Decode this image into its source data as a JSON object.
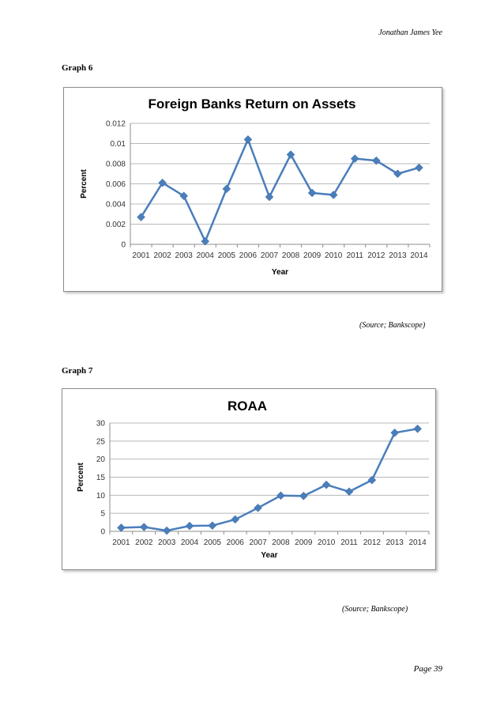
{
  "header": {
    "author": "Jonathan James Yee"
  },
  "graph6": {
    "label": "Graph  6",
    "source": "(Source; Bankscope)",
    "chart_data": {
      "type": "line",
      "title": "Foreign Banks Return on Assets",
      "xlabel": "Year",
      "ylabel": "Percent",
      "categories": [
        "2001",
        "2002",
        "2003",
        "2004",
        "2005",
        "2006",
        "2007",
        "2008",
        "2009",
        "2010",
        "2011",
        "2012",
        "2013",
        "2014"
      ],
      "values": [
        0.0027,
        0.0061,
        0.0048,
        0.0003,
        0.0055,
        0.0104,
        0.0047,
        0.0089,
        0.0051,
        0.0049,
        0.0085,
        0.0083,
        0.007,
        0.0076
      ],
      "ylim": [
        0,
        0.012
      ],
      "yticks": [
        "0",
        "0.002",
        "0.004",
        "0.006",
        "0.008",
        "0.01",
        "0.012"
      ],
      "grid": true,
      "color": "#4a7ebb"
    }
  },
  "graph7": {
    "label": "Graph  7",
    "source": "(Source; Bankscope)",
    "chart_data": {
      "type": "line",
      "title": "ROAA",
      "xlabel": "Year",
      "ylabel": "Percent",
      "categories": [
        "2001",
        "2002",
        "2003",
        "2004",
        "2005",
        "2006",
        "2007",
        "2008",
        "2009",
        "2010",
        "2011",
        "2012",
        "2013",
        "2014"
      ],
      "values": [
        1.0,
        1.2,
        0.2,
        1.5,
        1.6,
        3.3,
        6.5,
        9.9,
        9.8,
        12.9,
        11.0,
        14.2,
        27.3,
        28.4
      ],
      "ylim": [
        0,
        30
      ],
      "yticks": [
        "0",
        "5",
        "10",
        "15",
        "20",
        "25",
        "30"
      ],
      "grid": true,
      "color": "#4a7ebb"
    }
  },
  "footer": {
    "page": "Page 39"
  }
}
